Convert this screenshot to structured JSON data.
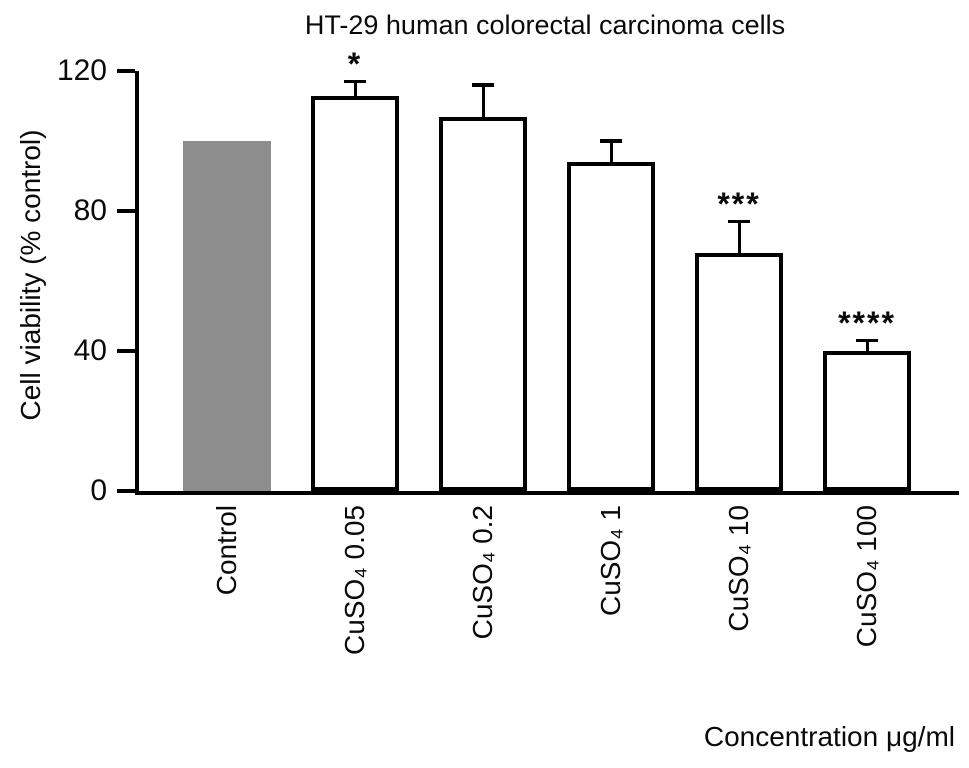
{
  "chart_data": {
    "type": "bar",
    "title": "HT-29 human colorectal carcinoma cells",
    "xlabel": "Concentration μg/ml",
    "ylabel": "Cell viability (% control)",
    "ylim": [
      0,
      120
    ],
    "yticks": [
      0,
      40,
      80,
      120
    ],
    "grid": false,
    "legend": "none",
    "categories": [
      "Control",
      "CuSO₄ 0.05",
      "CuSO₄ 0.2",
      "CuSO₄ 1",
      "CuSO₄ 10",
      "CuSO₄ 100"
    ],
    "series": [
      {
        "name": "Cell viability (% control)",
        "values": [
          100,
          113,
          107,
          94,
          68,
          40
        ],
        "errors": [
          0,
          4,
          9,
          6,
          9,
          3
        ],
        "significance": [
          "",
          "*",
          "",
          "",
          "***",
          "****"
        ]
      }
    ],
    "bar_styles": [
      {
        "fill": "#8d8d8d",
        "outlined": false
      },
      {
        "fill": "#ffffff",
        "outlined": true
      },
      {
        "fill": "#ffffff",
        "outlined": true
      },
      {
        "fill": "#ffffff",
        "outlined": true
      },
      {
        "fill": "#ffffff",
        "outlined": true
      },
      {
        "fill": "#ffffff",
        "outlined": true
      }
    ],
    "colors": {
      "background": "#ffffff",
      "axis": "#000000",
      "bar_outline": "#000000",
      "error_bar": "#000000",
      "control_fill": "#8d8d8d",
      "text": "#0a0a0a"
    }
  }
}
